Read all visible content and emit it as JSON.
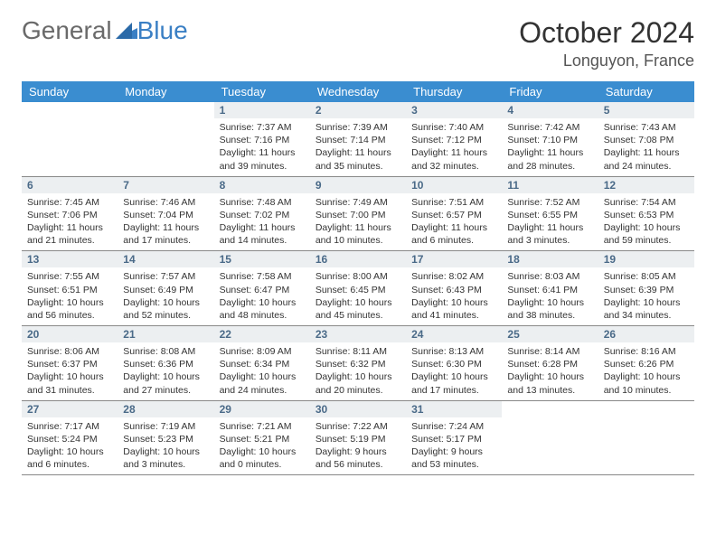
{
  "brand": {
    "part1": "General",
    "part2": "Blue"
  },
  "title": {
    "month": "October 2024",
    "location": "Longuyon, France"
  },
  "colors": {
    "header_bg": "#3a8dd0",
    "header_text": "#ffffff",
    "daynum_bg": "#eceff1",
    "daynum_text": "#4a6a88",
    "body_text": "#333333",
    "logo_blue": "#3a7fc4"
  },
  "typography": {
    "month_fontsize": 32,
    "location_fontsize": 18,
    "dayhead_fontsize": 13,
    "cell_fontsize": 10.5
  },
  "dayHeaders": [
    "Sunday",
    "Monday",
    "Tuesday",
    "Wednesday",
    "Thursday",
    "Friday",
    "Saturday"
  ],
  "weeks": [
    [
      {
        "n": "",
        "sr": "",
        "ss": "",
        "dl": ""
      },
      {
        "n": "",
        "sr": "",
        "ss": "",
        "dl": ""
      },
      {
        "n": "1",
        "sr": "Sunrise: 7:37 AM",
        "ss": "Sunset: 7:16 PM",
        "dl": "Daylight: 11 hours and 39 minutes."
      },
      {
        "n": "2",
        "sr": "Sunrise: 7:39 AM",
        "ss": "Sunset: 7:14 PM",
        "dl": "Daylight: 11 hours and 35 minutes."
      },
      {
        "n": "3",
        "sr": "Sunrise: 7:40 AM",
        "ss": "Sunset: 7:12 PM",
        "dl": "Daylight: 11 hours and 32 minutes."
      },
      {
        "n": "4",
        "sr": "Sunrise: 7:42 AM",
        "ss": "Sunset: 7:10 PM",
        "dl": "Daylight: 11 hours and 28 minutes."
      },
      {
        "n": "5",
        "sr": "Sunrise: 7:43 AM",
        "ss": "Sunset: 7:08 PM",
        "dl": "Daylight: 11 hours and 24 minutes."
      }
    ],
    [
      {
        "n": "6",
        "sr": "Sunrise: 7:45 AM",
        "ss": "Sunset: 7:06 PM",
        "dl": "Daylight: 11 hours and 21 minutes."
      },
      {
        "n": "7",
        "sr": "Sunrise: 7:46 AM",
        "ss": "Sunset: 7:04 PM",
        "dl": "Daylight: 11 hours and 17 minutes."
      },
      {
        "n": "8",
        "sr": "Sunrise: 7:48 AM",
        "ss": "Sunset: 7:02 PM",
        "dl": "Daylight: 11 hours and 14 minutes."
      },
      {
        "n": "9",
        "sr": "Sunrise: 7:49 AM",
        "ss": "Sunset: 7:00 PM",
        "dl": "Daylight: 11 hours and 10 minutes."
      },
      {
        "n": "10",
        "sr": "Sunrise: 7:51 AM",
        "ss": "Sunset: 6:57 PM",
        "dl": "Daylight: 11 hours and 6 minutes."
      },
      {
        "n": "11",
        "sr": "Sunrise: 7:52 AM",
        "ss": "Sunset: 6:55 PM",
        "dl": "Daylight: 11 hours and 3 minutes."
      },
      {
        "n": "12",
        "sr": "Sunrise: 7:54 AM",
        "ss": "Sunset: 6:53 PM",
        "dl": "Daylight: 10 hours and 59 minutes."
      }
    ],
    [
      {
        "n": "13",
        "sr": "Sunrise: 7:55 AM",
        "ss": "Sunset: 6:51 PM",
        "dl": "Daylight: 10 hours and 56 minutes."
      },
      {
        "n": "14",
        "sr": "Sunrise: 7:57 AM",
        "ss": "Sunset: 6:49 PM",
        "dl": "Daylight: 10 hours and 52 minutes."
      },
      {
        "n": "15",
        "sr": "Sunrise: 7:58 AM",
        "ss": "Sunset: 6:47 PM",
        "dl": "Daylight: 10 hours and 48 minutes."
      },
      {
        "n": "16",
        "sr": "Sunrise: 8:00 AM",
        "ss": "Sunset: 6:45 PM",
        "dl": "Daylight: 10 hours and 45 minutes."
      },
      {
        "n": "17",
        "sr": "Sunrise: 8:02 AM",
        "ss": "Sunset: 6:43 PM",
        "dl": "Daylight: 10 hours and 41 minutes."
      },
      {
        "n": "18",
        "sr": "Sunrise: 8:03 AM",
        "ss": "Sunset: 6:41 PM",
        "dl": "Daylight: 10 hours and 38 minutes."
      },
      {
        "n": "19",
        "sr": "Sunrise: 8:05 AM",
        "ss": "Sunset: 6:39 PM",
        "dl": "Daylight: 10 hours and 34 minutes."
      }
    ],
    [
      {
        "n": "20",
        "sr": "Sunrise: 8:06 AM",
        "ss": "Sunset: 6:37 PM",
        "dl": "Daylight: 10 hours and 31 minutes."
      },
      {
        "n": "21",
        "sr": "Sunrise: 8:08 AM",
        "ss": "Sunset: 6:36 PM",
        "dl": "Daylight: 10 hours and 27 minutes."
      },
      {
        "n": "22",
        "sr": "Sunrise: 8:09 AM",
        "ss": "Sunset: 6:34 PM",
        "dl": "Daylight: 10 hours and 24 minutes."
      },
      {
        "n": "23",
        "sr": "Sunrise: 8:11 AM",
        "ss": "Sunset: 6:32 PM",
        "dl": "Daylight: 10 hours and 20 minutes."
      },
      {
        "n": "24",
        "sr": "Sunrise: 8:13 AM",
        "ss": "Sunset: 6:30 PM",
        "dl": "Daylight: 10 hours and 17 minutes."
      },
      {
        "n": "25",
        "sr": "Sunrise: 8:14 AM",
        "ss": "Sunset: 6:28 PM",
        "dl": "Daylight: 10 hours and 13 minutes."
      },
      {
        "n": "26",
        "sr": "Sunrise: 8:16 AM",
        "ss": "Sunset: 6:26 PM",
        "dl": "Daylight: 10 hours and 10 minutes."
      }
    ],
    [
      {
        "n": "27",
        "sr": "Sunrise: 7:17 AM",
        "ss": "Sunset: 5:24 PM",
        "dl": "Daylight: 10 hours and 6 minutes."
      },
      {
        "n": "28",
        "sr": "Sunrise: 7:19 AM",
        "ss": "Sunset: 5:23 PM",
        "dl": "Daylight: 10 hours and 3 minutes."
      },
      {
        "n": "29",
        "sr": "Sunrise: 7:21 AM",
        "ss": "Sunset: 5:21 PM",
        "dl": "Daylight: 10 hours and 0 minutes."
      },
      {
        "n": "30",
        "sr": "Sunrise: 7:22 AM",
        "ss": "Sunset: 5:19 PM",
        "dl": "Daylight: 9 hours and 56 minutes."
      },
      {
        "n": "31",
        "sr": "Sunrise: 7:24 AM",
        "ss": "Sunset: 5:17 PM",
        "dl": "Daylight: 9 hours and 53 minutes."
      },
      {
        "n": "",
        "sr": "",
        "ss": "",
        "dl": ""
      },
      {
        "n": "",
        "sr": "",
        "ss": "",
        "dl": ""
      }
    ]
  ]
}
